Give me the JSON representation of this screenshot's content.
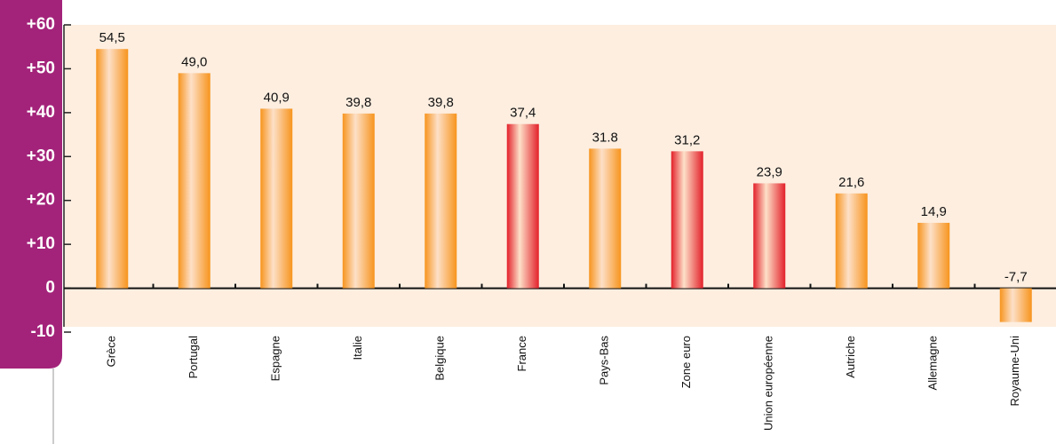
{
  "chart_data": {
    "type": "bar",
    "categories": [
      "Grèce",
      "Portugal",
      "Espagne",
      "Italie",
      "Belgique",
      "France",
      "Pays-Bas",
      "Zone euro",
      "Union européenne",
      "Autriche",
      "Allemagne",
      "Royaume-Uni"
    ],
    "values": [
      54.5,
      49.0,
      40.9,
      39.8,
      39.8,
      37.4,
      31.8,
      31.2,
      23.9,
      21.6,
      14.9,
      -7.7
    ],
    "value_labels": [
      "54,5",
      "49,0",
      "40,9",
      "39,8",
      "39,8",
      "37,4",
      "31.8",
      "31,2",
      "23,9",
      "21,6",
      "14,9",
      "-7,7"
    ],
    "colors": [
      "#f7941d",
      "#f7941d",
      "#f7941d",
      "#f7941d",
      "#f7941d",
      "#e3202a",
      "#f7941d",
      "#e3202a",
      "#e3202a",
      "#f7941d",
      "#f7941d",
      "#f7941d"
    ],
    "ylim": [
      -10,
      60
    ],
    "yticks": [
      {
        "value": 60,
        "label": "+60"
      },
      {
        "value": 50,
        "label": "+50"
      },
      {
        "value": 40,
        "label": "+40"
      },
      {
        "value": 30,
        "label": "+30"
      },
      {
        "value": 20,
        "label": "+20"
      },
      {
        "value": 10,
        "label": "+10"
      },
      0,
      -10
    ]
  }
}
